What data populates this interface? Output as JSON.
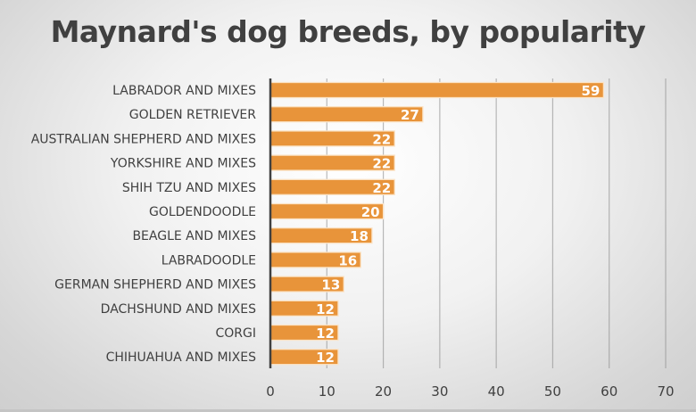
{
  "chart_data": {
    "type": "bar",
    "orientation": "horizontal",
    "title": "Maynard's dog breeds, by popularity",
    "categories": [
      "LABRADOR AND MIXES",
      "GOLDEN RETRIEVER",
      "AUSTRALIAN SHEPHERD AND MIXES",
      "YORKSHIRE AND MIXES",
      "SHIH TZU AND MIXES",
      "GOLDENDOODLE",
      "BEAGLE AND MIXES",
      "LABRADOODLE",
      "GERMAN SHEPHERD AND MIXES",
      "DACHSHUND AND MIXES",
      "CORGI",
      "CHIHUAHUA AND MIXES"
    ],
    "values": [
      59,
      27,
      22,
      22,
      22,
      20,
      18,
      16,
      13,
      12,
      12,
      12
    ],
    "xlim": [
      0,
      70
    ],
    "xticks": [
      0,
      10,
      20,
      30,
      40,
      50,
      60,
      70
    ],
    "xlabel": "",
    "ylabel": "",
    "grid": true,
    "data_labels": true,
    "bar_color": "#E8943A",
    "bar_border_color": "#FBE3C6"
  }
}
